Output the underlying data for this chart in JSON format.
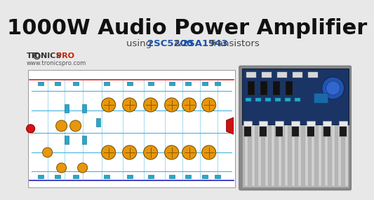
{
  "bg_color": "#e8e8e8",
  "title_text": "1000W Audio Power Amplifier",
  "sub1": "using ",
  "sub2": "2SC5200",
  "sub3": " & ",
  "sub4": "2SA1943",
  "sub5": " Transistors",
  "brand_url": "www.tronicspro.com",
  "title_color": "#111111",
  "title_fontsize": 22,
  "subtitle_fontsize": 9.5,
  "blue_highlight": "#1a52a8",
  "red_highlight": "#cc0000",
  "circuit_bg": "#ffffff",
  "circuit_border": "#999999",
  "rail_red": "#dd2222",
  "rail_blue": "#2222bb",
  "wire_cyan": "#33aadd",
  "transistor_fill": "#e8960a",
  "transistor_edge": "#7a5200",
  "comp_cyan": "#22aacc",
  "heatsink_silver": "#b5b5b5",
  "heatsink_fin": "#d2d2d2",
  "pcb_blue": "#1a3565",
  "logo_gray": "#333333",
  "logo_red": "#cc2200"
}
